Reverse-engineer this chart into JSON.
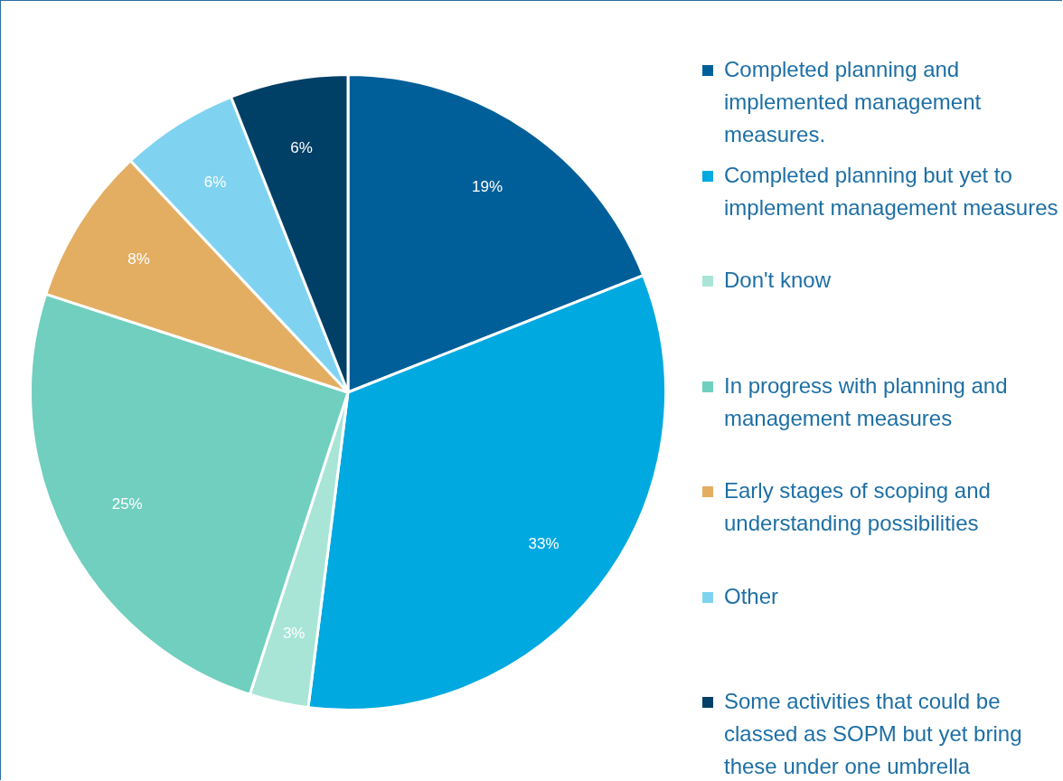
{
  "chart_data": {
    "type": "pie",
    "categories": [
      "Completed planning and implemented management measures.",
      "Completed planning but yet to implement management measures",
      "Don't know",
      "In progress with planning and management measures",
      "Early stages of scoping and understanding possibilities",
      "Other",
      "Some activities that could be classed as SOPM but yet bring these under one umbrella"
    ],
    "values": [
      19,
      33,
      3,
      25,
      8,
      6,
      6
    ],
    "value_labels": [
      "19%",
      "33%",
      "3%",
      "25%",
      "8%",
      "6%",
      "6%"
    ],
    "colors": [
      "#005f99",
      "#00a9e0",
      "#a8e5d6",
      "#70cfbf",
      "#e3ae62",
      "#7fd3f0",
      "#003f66"
    ],
    "legend": "right"
  }
}
